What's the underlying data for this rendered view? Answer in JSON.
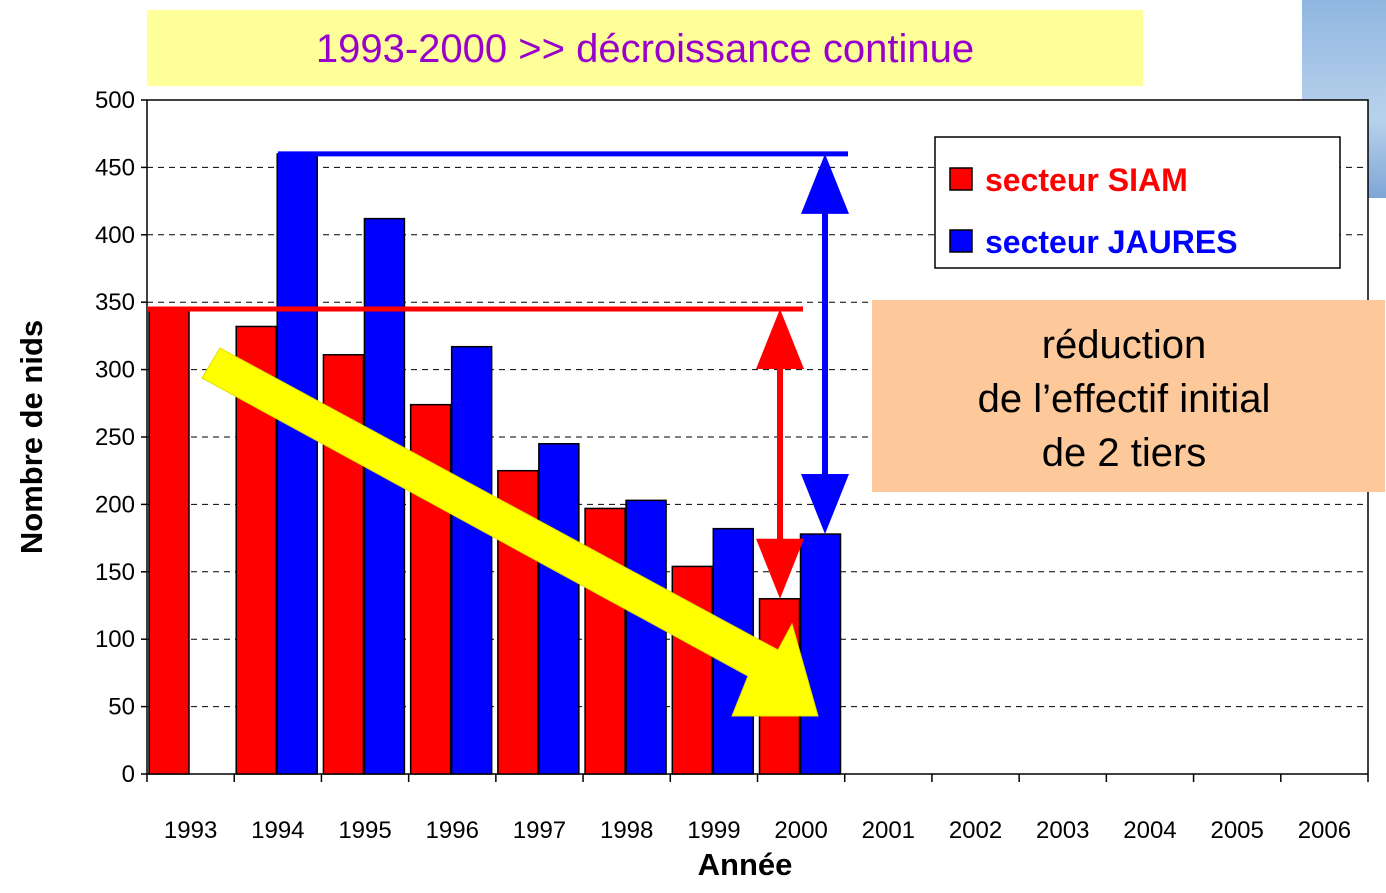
{
  "chart_data": {
    "type": "bar",
    "title": "1993-2000 >> décroissance continue",
    "y_label": "Nombre de nids",
    "x_label": "Année",
    "annotation": [
      "réduction",
      "de l’effectif initial",
      "de 2 tiers"
    ],
    "categories": [
      "1993",
      "1994",
      "1995",
      "1996",
      "1997",
      "1998",
      "1999",
      "2000",
      "2001",
      "2002",
      "2003",
      "2004",
      "2005",
      "2006"
    ],
    "series": [
      {
        "name": "secteur SIAM",
        "color": "#ff0000",
        "values": [
          345,
          332,
          311,
          274,
          225,
          197,
          154,
          130,
          null,
          null,
          null,
          null,
          null,
          null
        ]
      },
      {
        "name": "secteur JAURES",
        "color": "#0000ff",
        "values": [
          null,
          460,
          412,
          317,
          245,
          203,
          182,
          178,
          null,
          null,
          null,
          null,
          null,
          null
        ]
      }
    ],
    "ylim": [
      0,
      500
    ],
    "yticks": [
      0,
      50,
      100,
      150,
      200,
      250,
      300,
      350,
      400,
      450,
      500
    ],
    "grid": true,
    "legend": "top-right"
  }
}
